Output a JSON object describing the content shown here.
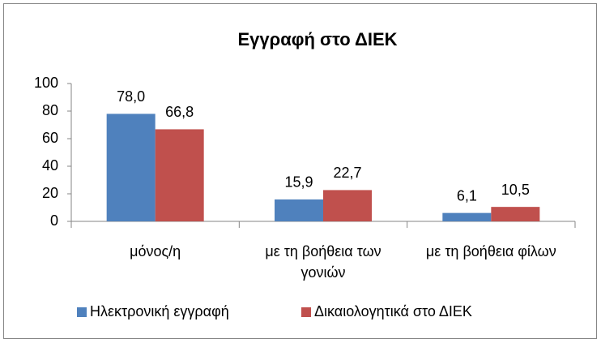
{
  "chart_data": {
    "type": "bar",
    "title": "Εγγραφή στο ΔΙΕΚ",
    "categories": [
      "μόνος/η",
      "με τη βοήθεια των γονιών",
      "με τη βοήθεια φίλων"
    ],
    "series": [
      {
        "name": "Ηλεκτρονική εγγραφή",
        "color": "#4f81bd",
        "values": [
          78.0,
          15.9,
          6.1
        ],
        "value_labels": [
          "78,0",
          "15,9",
          "6,1"
        ]
      },
      {
        "name": "Δικαιολογητικά στο ΔΙΕΚ",
        "color": "#c0504d",
        "values": [
          66.8,
          22.7,
          10.5
        ],
        "value_labels": [
          "66,8",
          "22,7",
          "10,5"
        ]
      }
    ],
    "ylim": [
      0,
      100
    ],
    "yticks": [
      0,
      20,
      40,
      60,
      80,
      100
    ],
    "grid": false,
    "legend": "bottom"
  }
}
